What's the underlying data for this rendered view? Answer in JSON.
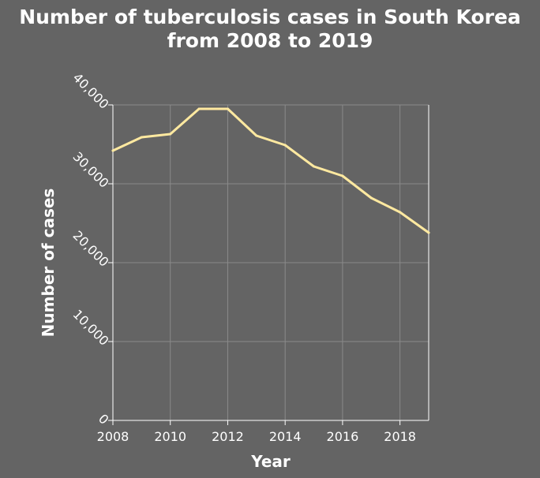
{
  "chart_data": {
    "type": "line",
    "title": "Number of tuberculosis cases in South Korea from 2008 to 2019",
    "title_lines": [
      "Number of tuberculosis cases in South Korea",
      "from 2008 to 2019"
    ],
    "xlabel": "Year",
    "ylabel": "Number of cases",
    "xlim": [
      2008,
      2019
    ],
    "ylim": [
      0,
      40000
    ],
    "x_ticks": [
      2008,
      2010,
      2012,
      2014,
      2016,
      2018
    ],
    "x_tick_labels": [
      "2008",
      "2010",
      "2012",
      "2014",
      "2016",
      "2018"
    ],
    "y_ticks": [
      0,
      10000,
      20000,
      30000,
      40000
    ],
    "y_tick_labels": [
      "0",
      "10,000",
      "20,000",
      "30,000",
      "40,000"
    ],
    "grid": true,
    "series": [
      {
        "x": [
          2008,
          2009,
          2010,
          2011,
          2012,
          2013,
          2014,
          2015,
          2016,
          2017,
          2018,
          2019
        ],
        "y": [
          34200,
          35900,
          36300,
          39500,
          39500,
          36100,
          34900,
          32200,
          31000,
          28200,
          26400,
          23800
        ]
      }
    ],
    "colors": {
      "background": "#646464",
      "line": "#ffe9a0",
      "grid": "#8a8a8a",
      "axis": "#ffffff",
      "text": "#ffffff"
    }
  }
}
